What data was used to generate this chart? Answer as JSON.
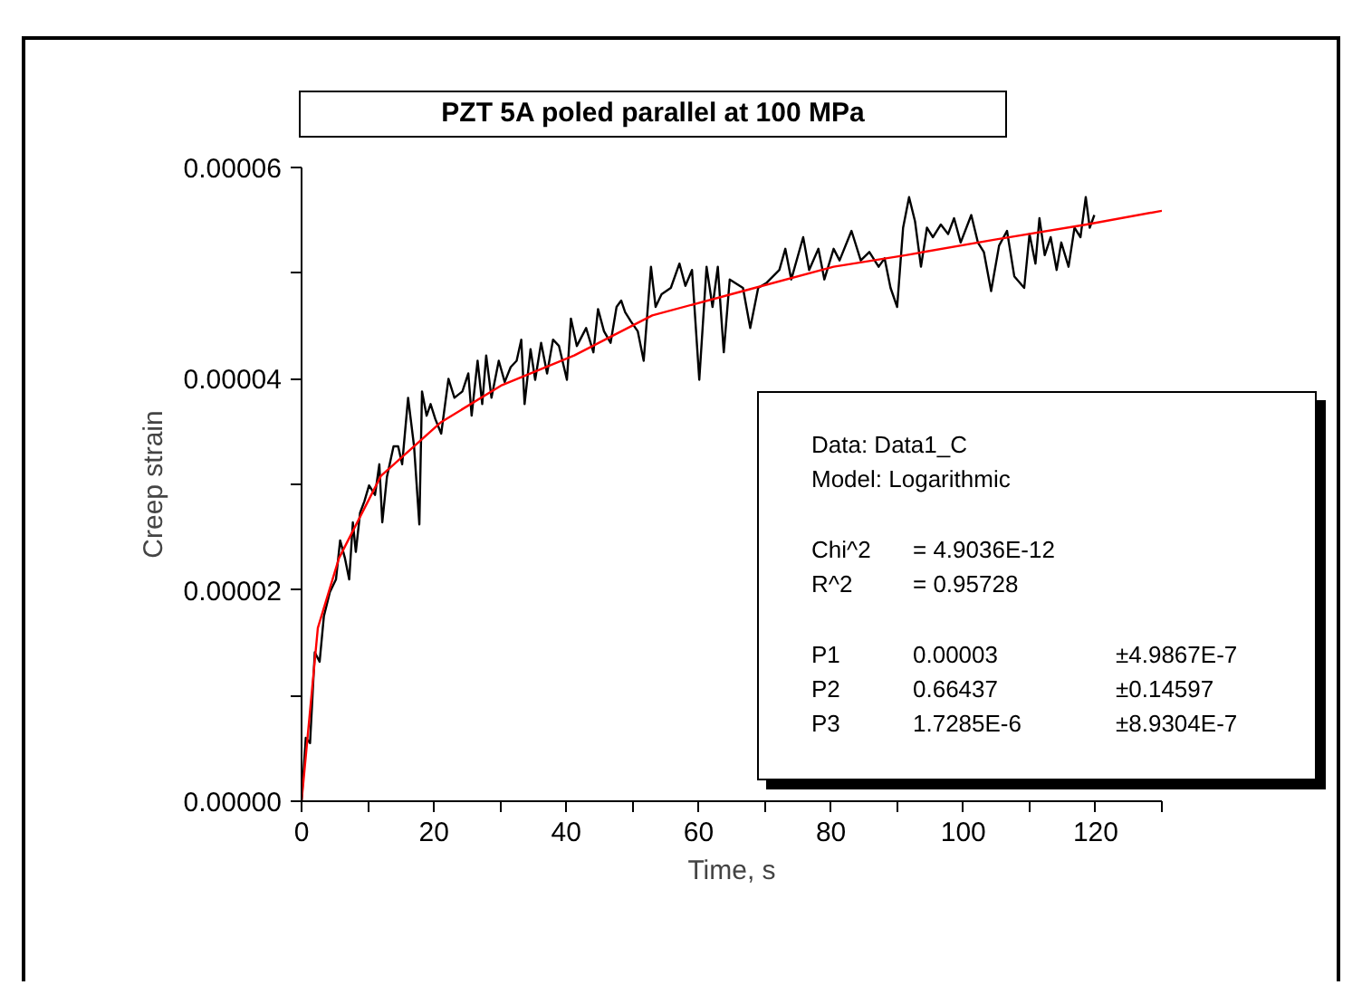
{
  "chart_data": {
    "type": "line",
    "title": "PZT 5A poled parallel at 100 MPa",
    "xlabel": "Time, s",
    "ylabel": "Creep strain",
    "xlim": [
      0,
      130
    ],
    "ylim": [
      0,
      6e-05
    ],
    "xticks": [
      0,
      {
        "value": 10,
        "label": null
      },
      20,
      {
        "value": 30,
        "label": null
      },
      40,
      {
        "value": 50,
        "label": null
      },
      60,
      {
        "value": 70,
        "label": null
      },
      80,
      {
        "value": 90,
        "label": null
      },
      100,
      {
        "value": 110,
        "label": null
      },
      120,
      {
        "value": 130,
        "label": null
      }
    ],
    "yticks": [
      {
        "value": 0,
        "label": "0.00000"
      },
      {
        "value": 1e-05,
        "label": null
      },
      {
        "value": 2e-05,
        "label": "0.00002"
      },
      {
        "value": 3e-05,
        "label": null
      },
      {
        "value": 4e-05,
        "label": "0.00004"
      },
      {
        "value": 5e-05,
        "label": null
      },
      {
        "value": 6e-05,
        "label": "0.00006"
      }
    ],
    "grid": false,
    "marker": "none",
    "line_style": "solid",
    "annotations": [
      "Data: Data1_C",
      "Model: Logarithmic",
      "Chi^2  = 4.9036E-12",
      "R^2  = 0.95728",
      "P1  0.00003  ±4.9867E-7",
      "P2  0.66437  ±0.14597",
      "P3  1.7285E-6  ±8.9304E-7"
    ],
    "series": [
      {
        "color": "#000000",
        "x": [
          0,
          0.64,
          1.28,
          2.0,
          2.73,
          3.37,
          4.28,
          5.2,
          5.83,
          6.56,
          7.2,
          7.75,
          8.2,
          8.84,
          9.5,
          10.2,
          11.1,
          11.75,
          12.2,
          12.9,
          13.9,
          14.6,
          15.2,
          16.1,
          17.0,
          17.8,
          18.2,
          18.9,
          19.5,
          20.2,
          21.1,
          22.2,
          23.1,
          24.3,
          25.2,
          25.7,
          26.6,
          27.3,
          27.9,
          28.7,
          29.8,
          30.7,
          31.6,
          32.5,
          33.2,
          33.7,
          34.6,
          35.3,
          36.2,
          37.1,
          38.0,
          38.9,
          40.1,
          40.7,
          41.6,
          43.0,
          44.1,
          44.8,
          45.7,
          46.7,
          47.6,
          48.3,
          48.9,
          49.8,
          50.8,
          51.7,
          52.8,
          53.5,
          54.4,
          55.8,
          57.1,
          58.0,
          59.0,
          60.1,
          61.2,
          62.1,
          62.9,
          63.8,
          64.7,
          66.7,
          67.8,
          69.0,
          70.3,
          72.2,
          73.1,
          74.0,
          75.8,
          76.7,
          78.1,
          79.0,
          80.4,
          81.3,
          83.1,
          84.5,
          85.8,
          87.2,
          88.1,
          89.0,
          90.0,
          90.9,
          91.8,
          92.7,
          93.6,
          94.5,
          95.4,
          96.6,
          97.7,
          98.6,
          99.6,
          101.2,
          102.2,
          103.1,
          104.2,
          105.4,
          106.6,
          107.7,
          109.2,
          110.0,
          110.9,
          111.5,
          112.3,
          113.2,
          114.1,
          114.8,
          115.9,
          116.8,
          117.7,
          118.5,
          119.1,
          119.8
        ],
        "values": [
          0,
          6e-06,
          5.5e-06,
          1.41e-05,
          1.32e-05,
          1.75e-05,
          1.98e-05,
          2.1e-05,
          2.47e-05,
          2.3e-05,
          2.1e-05,
          2.64e-05,
          2.36e-05,
          2.73e-05,
          2.84e-05,
          2.99e-05,
          2.9e-05,
          3.19e-05,
          2.64e-05,
          3.07e-05,
          3.36e-05,
          3.36e-05,
          3.19e-05,
          3.82e-05,
          3.36e-05,
          2.62e-05,
          3.88e-05,
          3.65e-05,
          3.76e-05,
          3.62e-05,
          3.48e-05,
          4e-05,
          3.82e-05,
          3.88e-05,
          4.05e-05,
          3.65e-05,
          4.17e-05,
          3.76e-05,
          4.22e-05,
          3.82e-05,
          4.17e-05,
          3.97e-05,
          4.11e-05,
          4.17e-05,
          4.37e-05,
          3.76e-05,
          4.28e-05,
          3.99e-05,
          4.34e-05,
          4.05e-05,
          4.37e-05,
          4.31e-05,
          3.99e-05,
          4.57e-05,
          4.31e-05,
          4.48e-05,
          4.25e-05,
          4.66e-05,
          4.45e-05,
          4.34e-05,
          4.68e-05,
          4.74e-05,
          4.63e-05,
          4.54e-05,
          4.45e-05,
          4.17e-05,
          5.06e-05,
          4.68e-05,
          4.8e-05,
          4.86e-05,
          5.09e-05,
          4.88e-05,
          5.03e-05,
          3.99e-05,
          5.06e-05,
          4.68e-05,
          5.06e-05,
          4.25e-05,
          4.94e-05,
          4.86e-05,
          4.48e-05,
          4.86e-05,
          4.91e-05,
          5.03e-05,
          5.23e-05,
          4.94e-05,
          5.34e-05,
          5.03e-05,
          5.23e-05,
          4.94e-05,
          5.23e-05,
          5.12e-05,
          5.4e-05,
          5.12e-05,
          5.2e-05,
          5.06e-05,
          5.14e-05,
          4.86e-05,
          4.68e-05,
          5.43e-05,
          5.72e-05,
          5.49e-05,
          5.06e-05,
          5.43e-05,
          5.34e-05,
          5.46e-05,
          5.37e-05,
          5.52e-05,
          5.29e-05,
          5.55e-05,
          5.29e-05,
          5.2e-05,
          4.83e-05,
          5.26e-05,
          5.4e-05,
          4.97e-05,
          4.86e-05,
          5.37e-05,
          5.09e-05,
          5.52e-05,
          5.17e-05,
          5.34e-05,
          5.03e-05,
          5.29e-05,
          5.06e-05,
          5.43e-05,
          5.34e-05,
          5.72e-05,
          5.43e-05,
          5.55e-05
        ]
      },
      {
        "color": "#ff0000",
        "x": [
          0,
          2.46,
          5.65,
          12.0,
          21.1,
          30.3,
          41.2,
          53.0,
          66.7,
          80.4,
          91.3,
          105.0,
          118.6,
          130.0
        ],
        "values": [
          0,
          1.64e-05,
          2.3e-05,
          3.08e-05,
          3.59e-05,
          3.94e-05,
          4.22e-05,
          4.6e-05,
          4.83e-05,
          5.06e-05,
          5.17e-05,
          5.32e-05,
          5.46e-05,
          5.59e-05
        ]
      }
    ]
  }
}
